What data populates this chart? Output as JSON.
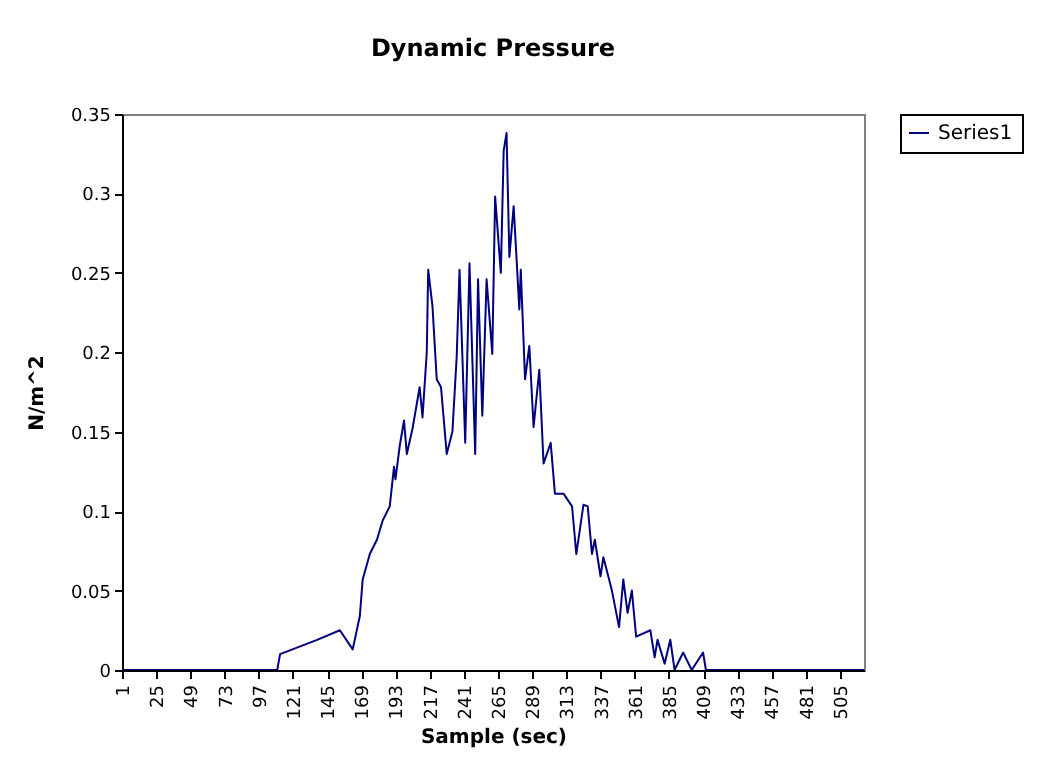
{
  "chart_data": {
    "type": "line",
    "title": "Dynamic Pressure",
    "xlabel": "Sample (sec)",
    "ylabel": "N/m^2",
    "xlim": [
      1,
      522
    ],
    "xticks": [
      1,
      25,
      49,
      73,
      97,
      121,
      145,
      169,
      193,
      217,
      241,
      265,
      289,
      313,
      337,
      361,
      385,
      409,
      433,
      457,
      481,
      505
    ],
    "ylim": [
      0,
      0.35
    ],
    "yticks": [
      0,
      0.05,
      0.1,
      0.15,
      0.2,
      0.25,
      0.3,
      0.35
    ],
    "grid": false,
    "legend": "right",
    "marker": "none",
    "line_style": "solid",
    "series": [
      {
        "name": "Series1",
        "color": "#000080",
        "x": [
          1,
          110,
          112,
          138,
          154,
          163,
          168,
          170,
          175,
          180,
          184,
          189,
          192,
          193,
          196,
          199,
          201,
          205,
          210,
          212,
          215,
          216,
          219,
          222,
          225,
          229,
          233,
          236,
          238,
          242,
          245,
          249,
          251,
          254,
          257,
          261,
          263,
          267,
          269,
          271,
          273,
          276,
          280,
          281,
          284,
          287,
          290,
          294,
          297,
          302,
          305,
          311,
          317,
          320,
          325,
          328,
          331,
          333,
          337,
          339,
          345,
          350,
          353,
          356,
          359,
          362,
          372,
          375,
          377,
          382,
          386,
          389,
          395,
          401,
          409,
          411,
          522
        ],
        "values": [
          0,
          0,
          0.01,
          0.019,
          0.025,
          0.013,
          0.034,
          0.057,
          0.073,
          0.082,
          0.094,
          0.103,
          0.128,
          0.12,
          0.141,
          0.157,
          0.136,
          0.152,
          0.178,
          0.159,
          0.2,
          0.252,
          0.229,
          0.183,
          0.178,
          0.136,
          0.15,
          0.197,
          0.252,
          0.143,
          0.256,
          0.136,
          0.246,
          0.16,
          0.246,
          0.199,
          0.298,
          0.25,
          0.327,
          0.338,
          0.26,
          0.292,
          0.227,
          0.252,
          0.183,
          0.204,
          0.153,
          0.189,
          0.13,
          0.143,
          0.111,
          0.111,
          0.103,
          0.073,
          0.104,
          0.103,
          0.073,
          0.082,
          0.059,
          0.071,
          0.05,
          0.027,
          0.057,
          0.036,
          0.05,
          0.021,
          0.025,
          0.008,
          0.019,
          0.004,
          0.019,
          0,
          0.011,
          0,
          0.011,
          0,
          0
        ]
      }
    ]
  }
}
